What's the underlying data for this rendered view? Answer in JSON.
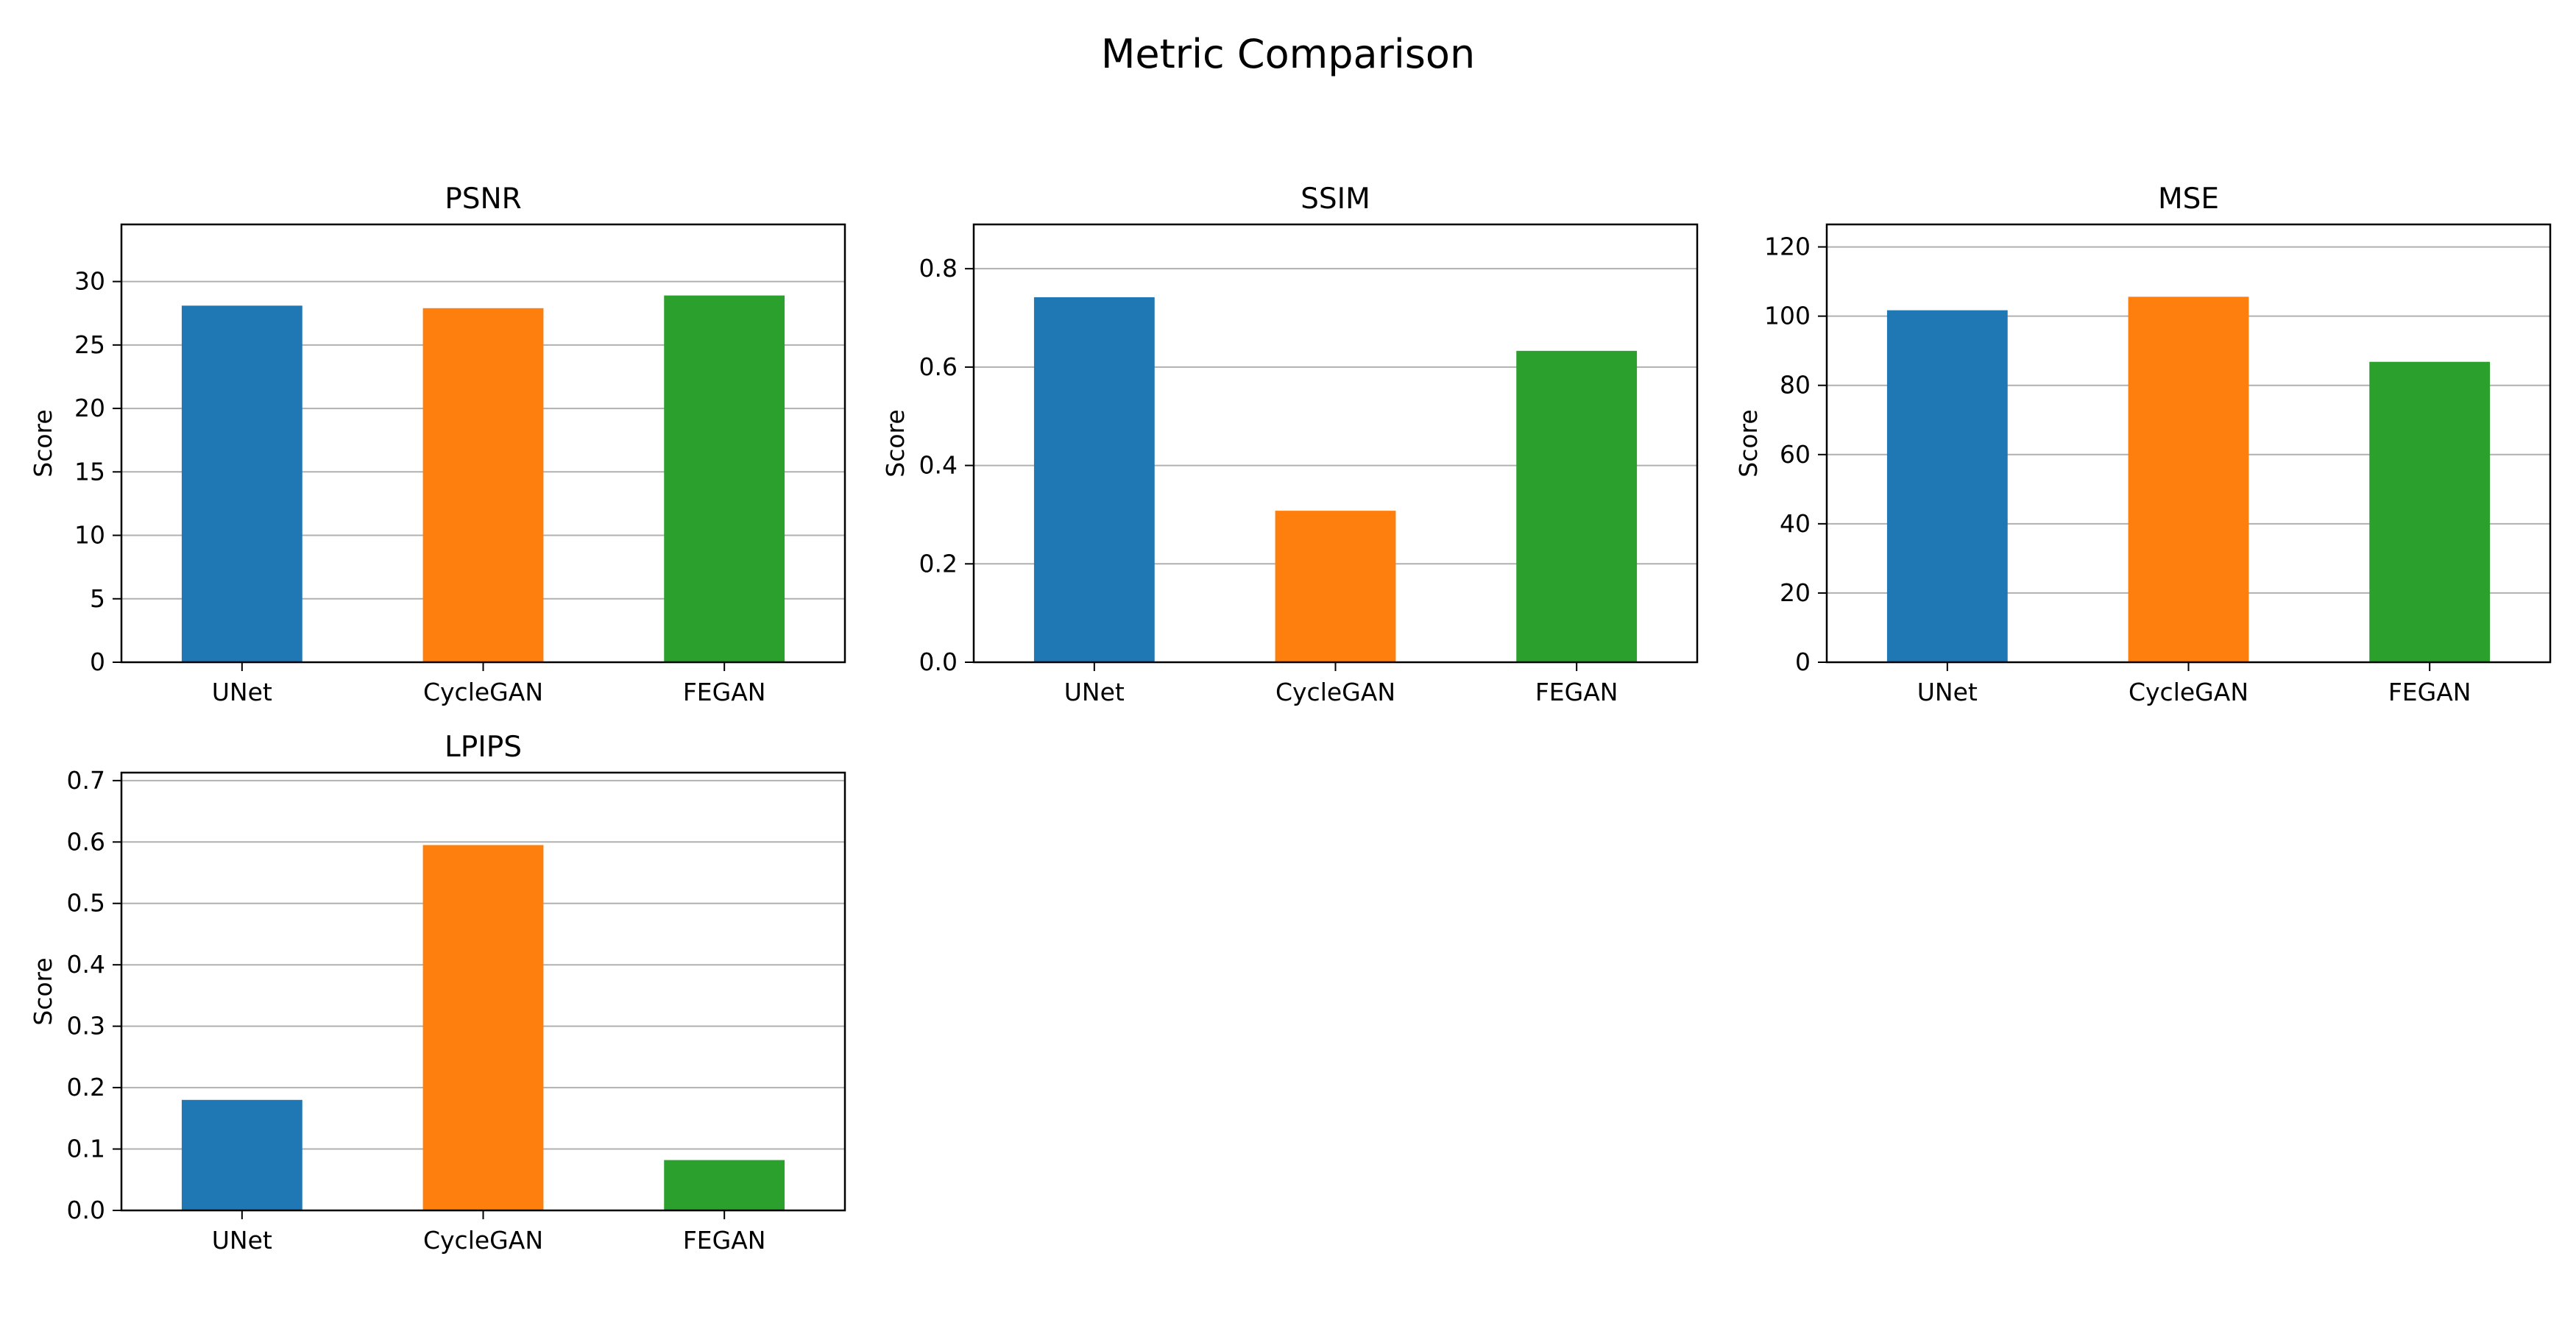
{
  "title": "Metric Comparison",
  "colors": {
    "UNet": "#1f77b4",
    "CycleGAN": "#ff7f0e",
    "FEGAN": "#2ca02c",
    "grid": "#b0b0b0"
  },
  "chart_data": [
    {
      "type": "bar",
      "title": "PSNR",
      "ylabel": "Score",
      "xlabel": "",
      "categories": [
        "UNet",
        "CycleGAN",
        "FEGAN"
      ],
      "values": [
        28.1,
        27.9,
        28.9
      ],
      "ylim": [
        0,
        34.5
      ],
      "yticks": [
        0,
        5,
        10,
        15,
        20,
        25,
        30
      ],
      "grid": "y"
    },
    {
      "type": "bar",
      "title": "SSIM",
      "ylabel": "Score",
      "xlabel": "",
      "categories": [
        "UNet",
        "CycleGAN",
        "FEGAN"
      ],
      "values": [
        0.742,
        0.308,
        0.633
      ],
      "ylim": [
        0,
        0.89
      ],
      "yticks": [
        0.0,
        0.2,
        0.4,
        0.6,
        0.8
      ],
      "decimals": 1,
      "grid": "y"
    },
    {
      "type": "bar",
      "title": "MSE",
      "ylabel": "Score",
      "xlabel": "",
      "categories": [
        "UNet",
        "CycleGAN",
        "FEGAN"
      ],
      "values": [
        101.7,
        105.6,
        86.8
      ],
      "ylim": [
        0,
        126.5
      ],
      "yticks": [
        0,
        20,
        40,
        60,
        80,
        100,
        120
      ],
      "grid": "y"
    },
    {
      "type": "bar",
      "title": "LPIPS",
      "ylabel": "Score",
      "xlabel": "",
      "categories": [
        "UNet",
        "CycleGAN",
        "FEGAN"
      ],
      "values": [
        0.18,
        0.595,
        0.082
      ],
      "ylim": [
        0,
        0.713
      ],
      "yticks": [
        0.0,
        0.1,
        0.2,
        0.3,
        0.4,
        0.5,
        0.6,
        0.7
      ],
      "decimals": 1,
      "grid": "y"
    }
  ]
}
